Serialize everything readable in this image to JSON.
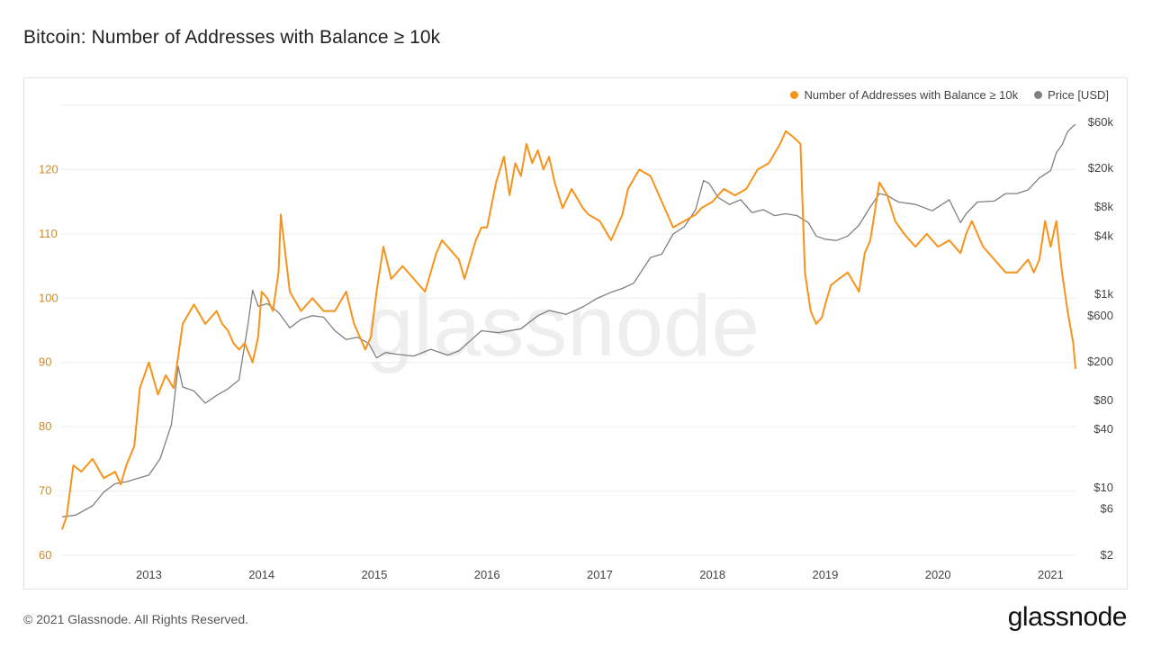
{
  "title": "Bitcoin: Number of Addresses with Balance ≥ 10k",
  "watermark": "glassnode",
  "footer": {
    "copyright": "© 2021 Glassnode. All Rights Reserved.",
    "logo": "glassnode"
  },
  "colors": {
    "addresses": "#f7931a",
    "price": "#808080",
    "grid": "#ececec"
  },
  "chart_data": {
    "type": "line",
    "legend_placement": "top-right",
    "grid": true,
    "x_ticks": [
      "2013",
      "2014",
      "2015",
      "2016",
      "2017",
      "2018",
      "2019",
      "2020",
      "2021"
    ],
    "x_range": [
      2012.23,
      2021.22
    ],
    "y_left": {
      "range": [
        60,
        130
      ],
      "ticks": [
        "60",
        "70",
        "80",
        "90",
        "100",
        "110",
        "120"
      ]
    },
    "y_right": {
      "scale": "log",
      "range": [
        2,
        90000
      ],
      "ticks": [
        "$2",
        "$6",
        "$10",
        "$40",
        "$80",
        "$200",
        "$600",
        "$1k",
        "$4k",
        "$8k",
        "$20k",
        "$60k"
      ],
      "tick_values": [
        2,
        6,
        10,
        40,
        80,
        200,
        600,
        1000,
        4000,
        8000,
        20000,
        60000
      ]
    },
    "series": [
      {
        "name": "Number of Addresses with Balance ≥ 10k",
        "axis": "left",
        "color": "#f7931a",
        "x": [
          2012.23,
          2012.27,
          2012.33,
          2012.4,
          2012.5,
          2012.6,
          2012.7,
          2012.75,
          2012.8,
          2012.87,
          2012.92,
          2013.0,
          2013.08,
          2013.15,
          2013.22,
          2013.3,
          2013.4,
          2013.5,
          2013.6,
          2013.65,
          2013.7,
          2013.75,
          2013.8,
          2013.85,
          2013.92,
          2013.97,
          2014.0,
          2014.05,
          2014.1,
          2014.15,
          2014.17,
          2014.25,
          2014.35,
          2014.45,
          2014.55,
          2014.65,
          2014.75,
          2014.82,
          2014.87,
          2014.92,
          2014.97,
          2015.02,
          2015.08,
          2015.15,
          2015.25,
          2015.35,
          2015.45,
          2015.55,
          2015.6,
          2015.65,
          2015.7,
          2015.75,
          2015.8,
          2015.9,
          2015.95,
          2016.0,
          2016.08,
          2016.15,
          2016.2,
          2016.25,
          2016.3,
          2016.35,
          2016.4,
          2016.45,
          2016.5,
          2016.55,
          2016.6,
          2016.67,
          2016.75,
          2016.85,
          2016.9,
          2017.0,
          2017.1,
          2017.2,
          2017.25,
          2017.35,
          2017.45,
          2017.5,
          2017.6,
          2017.65,
          2017.75,
          2017.85,
          2017.9,
          2018.0,
          2018.1,
          2018.2,
          2018.3,
          2018.4,
          2018.5,
          2018.6,
          2018.65,
          2018.72,
          2018.78,
          2018.82,
          2018.87,
          2018.92,
          2018.97,
          2019.0,
          2019.05,
          2019.12,
          2019.2,
          2019.3,
          2019.35,
          2019.4,
          2019.48,
          2019.55,
          2019.62,
          2019.7,
          2019.8,
          2019.9,
          2020.0,
          2020.1,
          2020.2,
          2020.25,
          2020.3,
          2020.4,
          2020.5,
          2020.55,
          2020.6,
          2020.7,
          2020.75,
          2020.8,
          2020.85,
          2020.9,
          2020.95,
          2021.0,
          2021.05,
          2021.1,
          2021.15,
          2021.2,
          2021.22
        ],
        "y": [
          64,
          66,
          74,
          73,
          75,
          72,
          73,
          71,
          74,
          77,
          86,
          90,
          85,
          88,
          86,
          96,
          99,
          96,
          98,
          96,
          95,
          93,
          92,
          93,
          90,
          94,
          101,
          100,
          98,
          104,
          113,
          101,
          98,
          100,
          98,
          98,
          101,
          96,
          94,
          92,
          94,
          101,
          108,
          103,
          105,
          103,
          101,
          107,
          109,
          108,
          107,
          106,
          103,
          109,
          111,
          111,
          118,
          122,
          116,
          121,
          119,
          124,
          121,
          123,
          120,
          122,
          118,
          114,
          117,
          114,
          113,
          112,
          109,
          113,
          117,
          120,
          119,
          117,
          113,
          111,
          112,
          113,
          114,
          115,
          117,
          116,
          117,
          120,
          121,
          124,
          126,
          125,
          124,
          104,
          98,
          96,
          97,
          99,
          102,
          103,
          104,
          101,
          107,
          109,
          118,
          116,
          112,
          110,
          108,
          110,
          108,
          109,
          107,
          110,
          112,
          108,
          106,
          105,
          104,
          104,
          105,
          106,
          104,
          106,
          112,
          108,
          112,
          104,
          98,
          93,
          89
        ]
      },
      {
        "name": "Price [USD]",
        "axis": "right",
        "color": "#808080",
        "x": [
          2012.23,
          2012.35,
          2012.5,
          2012.6,
          2012.7,
          2012.8,
          2012.9,
          2013.0,
          2013.1,
          2013.2,
          2013.26,
          2013.3,
          2013.4,
          2013.5,
          2013.6,
          2013.7,
          2013.8,
          2013.88,
          2013.92,
          2013.97,
          2014.05,
          2014.15,
          2014.25,
          2014.35,
          2014.45,
          2014.55,
          2014.65,
          2014.75,
          2014.85,
          2014.95,
          2015.02,
          2015.1,
          2015.2,
          2015.35,
          2015.5,
          2015.65,
          2015.75,
          2015.85,
          2015.95,
          2016.1,
          2016.3,
          2016.45,
          2016.55,
          2016.7,
          2016.85,
          2016.97,
          2017.1,
          2017.2,
          2017.3,
          2017.45,
          2017.55,
          2017.65,
          2017.75,
          2017.85,
          2017.92,
          2017.97,
          2018.05,
          2018.15,
          2018.25,
          2018.35,
          2018.45,
          2018.55,
          2018.65,
          2018.75,
          2018.85,
          2018.92,
          2019.0,
          2019.1,
          2019.2,
          2019.3,
          2019.4,
          2019.48,
          2019.55,
          2019.65,
          2019.8,
          2019.95,
          2020.1,
          2020.2,
          2020.25,
          2020.35,
          2020.5,
          2020.6,
          2020.7,
          2020.8,
          2020.9,
          2021.0,
          2021.05,
          2021.1,
          2021.15,
          2021.2,
          2021.22
        ],
        "y": [
          5,
          5.2,
          6.5,
          9,
          11,
          11.5,
          12.5,
          13.5,
          20,
          45,
          180,
          110,
          100,
          75,
          90,
          105,
          130,
          500,
          1100,
          750,
          800,
          650,
          450,
          550,
          600,
          580,
          420,
          340,
          360,
          310,
          220,
          250,
          240,
          230,
          270,
          235,
          260,
          330,
          420,
          400,
          440,
          600,
          680,
          620,
          740,
          900,
          1050,
          1150,
          1300,
          2400,
          2600,
          4200,
          5000,
          7500,
          15000,
          14000,
          10000,
          8500,
          9500,
          7000,
          7500,
          6500,
          6800,
          6500,
          5500,
          4000,
          3700,
          3600,
          4000,
          5200,
          8000,
          11000,
          10500,
          9000,
          8500,
          7300,
          9500,
          5500,
          6800,
          9000,
          9200,
          11000,
          11000,
          12000,
          16000,
          19000,
          29000,
          35000,
          48000,
          55000,
          57000
        ]
      }
    ]
  }
}
